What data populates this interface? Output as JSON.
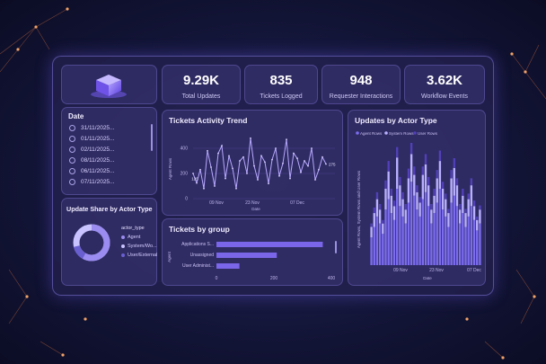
{
  "kpis": [
    {
      "value": "9.29K",
      "label": "Total Updates"
    },
    {
      "value": "835",
      "label": "Tickets Logged"
    },
    {
      "value": "948",
      "label": "Requester Interactions"
    },
    {
      "value": "3.62K",
      "label": "Workflow Events"
    }
  ],
  "date_filter": {
    "title": "Date",
    "items": [
      "31/11/2025...",
      "01/11/2025...",
      "02/11/2025...",
      "08/11/2025...",
      "06/11/2025...",
      "07/11/2025..."
    ]
  },
  "share_panel": {
    "title": "Update Share by Actor Type",
    "legend_title": "actor_type",
    "legend": [
      {
        "label": "Agent",
        "color": "#9a8cf0"
      },
      {
        "label": "System/Wo...",
        "color": "#c9c3ff"
      },
      {
        "label": "User/External",
        "color": "#6a5fd0"
      }
    ]
  },
  "colors": {
    "agent": "#7c6cf0",
    "system": "#b9b0ff",
    "user": "#5140b8"
  },
  "chart_data": [
    {
      "type": "line",
      "title": "Tickets Activity Trend",
      "xlabel": "Date",
      "ylabel": "Agent Rows",
      "ylim": [
        0,
        500
      ],
      "yticks": [
        0,
        200,
        400
      ],
      "x_tick_labels": [
        "09 Nov",
        "23 Nov",
        "07 Dec"
      ],
      "series": [
        {
          "values": [
            200,
            125,
            230,
            80,
            380,
            250,
            100,
            360,
            420,
            160,
            340,
            240,
            80,
            300,
            330,
            200,
            480,
            260,
            150,
            340,
            290,
            120,
            310,
            400,
            180,
            280,
            470,
            160,
            360,
            320,
            210,
            300,
            260,
            400,
            150,
            230,
            330,
            275
          ]
        }
      ],
      "annotations": [
        "125",
        "275"
      ]
    },
    {
      "type": "bar",
      "orientation": "horizontal",
      "title": "Tickets by group",
      "ylabel": "Agent",
      "categories": [
        "Applications S...",
        "Unassigned",
        "User Administ..."
      ],
      "values": [
        370,
        210,
        80
      ],
      "xlim": [
        0,
        400
      ],
      "xticks": [
        0,
        200,
        400
      ]
    },
    {
      "type": "bar",
      "stacked": true,
      "title": "Updates by Actor Type",
      "xlabel": "Date",
      "ylabel": "Agent Rows, System Rows and User Rows",
      "x_tick_labels": [
        "09 Nov",
        "23 Nov",
        "07 Dec"
      ],
      "series": [
        {
          "name": "Agent Rows",
          "values": [
            40,
            55,
            70,
            60,
            45,
            80,
            95,
            75,
            65,
            110,
            85,
            70,
            60,
            90,
            120,
            100,
            80,
            70,
            95,
            105,
            85,
            60,
            75,
            90,
            110,
            80,
            70,
            55,
            90,
            100,
            85,
            60,
            75,
            55,
            70,
            85,
            65,
            50,
            60
          ]
        },
        {
          "name": "System Rows",
          "values": [
            15,
            20,
            25,
            20,
            15,
            30,
            40,
            25,
            20,
            45,
            30,
            25,
            20,
            35,
            40,
            30,
            25,
            20,
            35,
            40,
            30,
            20,
            25,
            35,
            40,
            30,
            25,
            20,
            35,
            40,
            30,
            20,
            25,
            20,
            25,
            30,
            20,
            15,
            20
          ]
        },
        {
          "name": "User Rows",
          "values": [
            5,
            8,
            10,
            8,
            5,
            12,
            15,
            10,
            8,
            15,
            12,
            10,
            8,
            14,
            16,
            12,
            10,
            8,
            12,
            15,
            12,
            8,
            10,
            12,
            15,
            10,
            8,
            6,
            12,
            14,
            10,
            8,
            10,
            6,
            8,
            10,
            8,
            5,
            6
          ]
        }
      ]
    }
  ]
}
